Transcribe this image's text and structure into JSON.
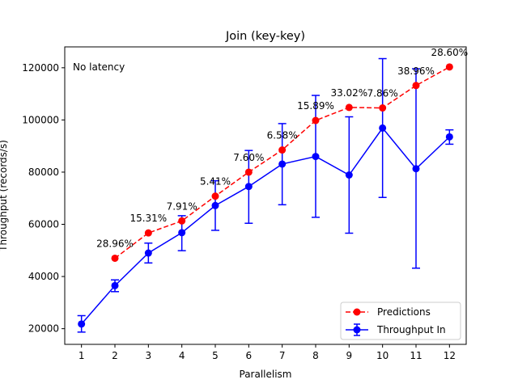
{
  "chart_data": {
    "type": "line",
    "title": "Join (key-key)",
    "xlabel": "Parallelism",
    "ylabel": "Throughput (records/s)",
    "annotation": "No latency",
    "xlim": [
      0.5,
      12.5
    ],
    "ylim": [
      14000,
      128000
    ],
    "xticks": [
      1,
      2,
      3,
      4,
      5,
      6,
      7,
      8,
      9,
      10,
      11,
      12
    ],
    "yticks": [
      20000,
      40000,
      60000,
      80000,
      100000,
      120000
    ],
    "ytick_labels": [
      "20000",
      "40000",
      "60000",
      "80000",
      "100000",
      "120000"
    ],
    "legend_position": "lower-right",
    "series": [
      {
        "name": "Predictions",
        "color": "#ff0000",
        "style": "dashed",
        "x": [
          2,
          3,
          4,
          5,
          6,
          7,
          8,
          9,
          10,
          11,
          12
        ],
        "values": [
          47000,
          56700,
          61300,
          70800,
          80000,
          88500,
          99800,
          104800,
          104600,
          113200,
          120300
        ],
        "labels": [
          "28.96%",
          "15.31%",
          "7.91%",
          "5.41%",
          "7.60%",
          "6.58%",
          "15.89%",
          "33.02%",
          "7.86%",
          "38.96%",
          "28.60%"
        ]
      },
      {
        "name": "Throughput In",
        "color": "#0000ff",
        "style": "solid",
        "x": [
          1,
          2,
          3,
          4,
          5,
          6,
          7,
          8,
          9,
          10,
          11,
          12
        ],
        "values": [
          21800,
          36500,
          49000,
          56800,
          67200,
          74500,
          83100,
          86000,
          78900,
          96900,
          81300,
          93500
        ],
        "err_low": [
          18700,
          34200,
          45200,
          49900,
          57700,
          60400,
          67500,
          62700,
          56600,
          70300,
          43200,
          90700
        ],
        "err_high": [
          25000,
          38700,
          52800,
          63300,
          76700,
          88300,
          98600,
          109400,
          101200,
          123500,
          119600,
          96200
        ]
      }
    ]
  }
}
